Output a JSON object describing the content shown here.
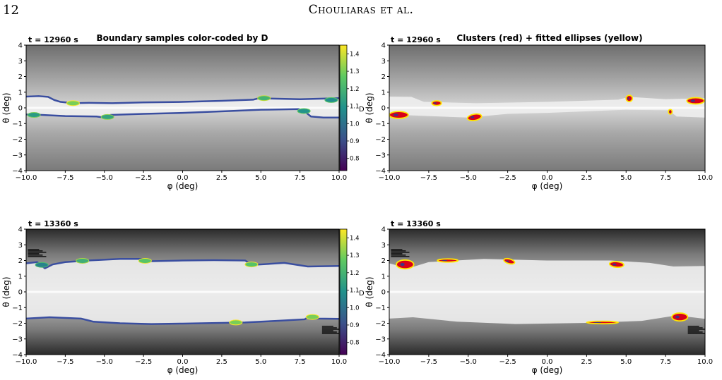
{
  "header": {
    "page_number": "12",
    "running_title": "Chouliaras et al."
  },
  "chart_data": [
    {
      "type": "scatter",
      "panel": "top-left",
      "timestamp": "t = 12960 s",
      "title": "Boundary samples color-coded by D",
      "xlabel": "φ (deg)",
      "ylabel": "θ (deg)",
      "xlim": [
        -10,
        10
      ],
      "ylim": [
        -4,
        4
      ],
      "xticks": [
        "−10.0",
        "−7.5",
        "−5.0",
        "−2.5",
        "0.0",
        "2.5",
        "5.0",
        "7.5",
        "10.0"
      ],
      "yticks": [
        "−4",
        "−3",
        "−2",
        "−1",
        "0",
        "1",
        "2",
        "3",
        "4"
      ],
      "colorbar": {
        "label": "D",
        "range": [
          0.73,
          1.45
        ],
        "ticks": [
          "0.8",
          "0.9",
          "1.0",
          "1.1",
          "1.2",
          "1.3",
          "1.4"
        ]
      },
      "boundaries": [
        {
          "points": [
            [
              -10,
              0.72
            ],
            [
              -9.2,
              0.75
            ],
            [
              -8.6,
              0.7
            ],
            [
              -8.2,
              0.5
            ],
            [
              -7.8,
              0.38
            ],
            [
              -7.0,
              0.3
            ],
            [
              -6.0,
              0.32
            ],
            [
              -4.5,
              0.3
            ],
            [
              -2.5,
              0.35
            ],
            [
              0,
              0.38
            ],
            [
              2.5,
              0.45
            ],
            [
              4.5,
              0.52
            ],
            [
              5.2,
              0.7
            ],
            [
              5.4,
              0.6
            ],
            [
              7.5,
              0.55
            ],
            [
              10,
              0.62
            ]
          ]
        },
        {
          "points": [
            [
              -10,
              -0.42
            ],
            [
              -9.0,
              -0.45
            ],
            [
              -7.5,
              -0.52
            ],
            [
              -5.5,
              -0.55
            ],
            [
              -5.0,
              -0.62
            ],
            [
              -4.6,
              -0.45
            ],
            [
              -2.5,
              -0.38
            ],
            [
              0,
              -0.32
            ],
            [
              3,
              -0.2
            ],
            [
              5,
              -0.12
            ],
            [
              7.4,
              -0.08
            ],
            [
              7.7,
              -0.15
            ],
            [
              8.2,
              -0.55
            ],
            [
              9,
              -0.62
            ],
            [
              10,
              -0.62
            ]
          ]
        }
      ],
      "highlights": [
        {
          "x": -9.5,
          "y": -0.45,
          "d": 1.12
        },
        {
          "x": -7.0,
          "y": 0.3,
          "d": 1.3
        },
        {
          "x": -4.8,
          "y": -0.58,
          "d": 1.15
        },
        {
          "x": 5.2,
          "y": 0.62,
          "d": 1.2
        },
        {
          "x": 7.75,
          "y": -0.2,
          "d": 1.1
        },
        {
          "x": 9.5,
          "y": 0.5,
          "d": 1.08
        }
      ]
    },
    {
      "type": "scatter",
      "panel": "top-right",
      "timestamp": "t = 12960 s",
      "title": "Clusters (red) + fitted ellipses (yellow)",
      "xlabel": "φ (deg)",
      "ylabel": "θ (deg)",
      "xlim": [
        -10,
        10
      ],
      "ylim": [
        -4,
        4
      ],
      "xticks": [
        "−10.0",
        "−7.5",
        "−5.0",
        "−2.5",
        "0.0",
        "2.5",
        "5.0",
        "7.5",
        "10.0"
      ],
      "yticks": [
        "−4",
        "−3",
        "−2",
        "−1",
        "0",
        "1",
        "2",
        "3",
        "4"
      ],
      "band": {
        "upper": [
          [
            -10,
            0.72
          ],
          [
            -8.6,
            0.7
          ],
          [
            -7.8,
            0.38
          ],
          [
            -4.5,
            0.3
          ],
          [
            0,
            0.38
          ],
          [
            4.5,
            0.52
          ],
          [
            5.2,
            0.7
          ],
          [
            7.5,
            0.55
          ],
          [
            10,
            0.62
          ]
        ],
        "lower": [
          [
            -10,
            -0.42
          ],
          [
            -7.5,
            -0.52
          ],
          [
            -5.0,
            -0.62
          ],
          [
            -2.5,
            -0.38
          ],
          [
            0,
            -0.32
          ],
          [
            5,
            -0.12
          ],
          [
            7.7,
            -0.15
          ],
          [
            8.2,
            -0.55
          ],
          [
            10,
            -0.62
          ]
        ]
      },
      "ellipses": [
        {
          "x": -9.4,
          "y": -0.45,
          "rx": 0.6,
          "ry": 0.22,
          "rot": 0
        },
        {
          "x": -7.0,
          "y": 0.3,
          "rx": 0.3,
          "ry": 0.15,
          "rot": 0
        },
        {
          "x": -4.6,
          "y": -0.6,
          "rx": 0.45,
          "ry": 0.2,
          "rot": -10
        },
        {
          "x": 5.2,
          "y": 0.6,
          "rx": 0.2,
          "ry": 0.2,
          "rot": 0
        },
        {
          "x": 7.8,
          "y": -0.25,
          "rx": 0.12,
          "ry": 0.15,
          "rot": 0
        },
        {
          "x": 9.4,
          "y": 0.45,
          "rx": 0.55,
          "ry": 0.2,
          "rot": 0
        }
      ]
    },
    {
      "type": "scatter",
      "panel": "bottom-left",
      "timestamp": "t = 13360 s",
      "title": "",
      "xlabel": "φ (deg)",
      "ylabel": "θ (deg)",
      "xlim": [
        -10,
        10
      ],
      "ylim": [
        -4,
        4
      ],
      "xticks": [
        "−10.0",
        "−7.5",
        "−5.0",
        "−2.5",
        "0.0",
        "2.5",
        "5.0",
        "7.5",
        "10.0"
      ],
      "yticks": [
        "−4",
        "−3",
        "−2",
        "−1",
        "0",
        "1",
        "2",
        "3",
        "4"
      ],
      "colorbar": {
        "label": "D",
        "range": [
          0.73,
          1.45
        ],
        "ticks": [
          "0.8",
          "0.9",
          "1.0",
          "1.1",
          "1.2",
          "1.3",
          "1.4"
        ]
      },
      "boundaries": [
        {
          "points": [
            [
              -10,
              1.82
            ],
            [
              -9.3,
              1.9
            ],
            [
              -8.8,
              1.5
            ],
            [
              -8.3,
              1.75
            ],
            [
              -7.5,
              1.9
            ],
            [
              -6.0,
              2.0
            ],
            [
              -4.0,
              2.1
            ],
            [
              -2.5,
              2.1
            ],
            [
              -2.2,
              1.95
            ],
            [
              0,
              2.0
            ],
            [
              2.0,
              2.02
            ],
            [
              4.0,
              2.0
            ],
            [
              4.4,
              1.72
            ],
            [
              5.0,
              1.75
            ],
            [
              6.5,
              1.85
            ],
            [
              8.0,
              1.62
            ],
            [
              10,
              1.65
            ]
          ]
        },
        {
          "points": [
            [
              -10,
              -1.7
            ],
            [
              -8.5,
              -1.62
            ],
            [
              -6.5,
              -1.7
            ],
            [
              -5.7,
              -1.9
            ],
            [
              -4.0,
              -2.0
            ],
            [
              -2.0,
              -2.05
            ],
            [
              0,
              -2.02
            ],
            [
              2.5,
              -1.98
            ],
            [
              4.0,
              -1.95
            ],
            [
              6.0,
              -1.85
            ],
            [
              7.8,
              -1.75
            ],
            [
              8.2,
              -1.5
            ],
            [
              8.6,
              -1.7
            ],
            [
              10,
              -1.72
            ]
          ]
        }
      ],
      "highlights": [
        {
          "x": -9.0,
          "y": 1.72,
          "d": 1.05
        },
        {
          "x": -6.4,
          "y": 1.98,
          "d": 1.18
        },
        {
          "x": -2.4,
          "y": 1.98,
          "d": 1.25
        },
        {
          "x": 4.4,
          "y": 1.75,
          "d": 1.25
        },
        {
          "x": 3.4,
          "y": -1.95,
          "d": 1.3
        },
        {
          "x": 8.3,
          "y": -1.6,
          "d": 1.3
        }
      ]
    },
    {
      "type": "scatter",
      "panel": "bottom-right",
      "timestamp": "t = 13360 s",
      "title": "",
      "xlabel": "φ (deg)",
      "ylabel": "θ (deg)",
      "xlim": [
        -10,
        10
      ],
      "ylim": [
        -4,
        4
      ],
      "xticks": [
        "−10.0",
        "−7.5",
        "−5.0",
        "−2.5",
        "0.0",
        "2.5",
        "5.0",
        "7.5",
        "10.0"
      ],
      "yticks": [
        "−4",
        "−3",
        "−2",
        "−1",
        "0",
        "1",
        "2",
        "3",
        "4"
      ],
      "band": {
        "upper": [
          [
            -10,
            1.82
          ],
          [
            -8.8,
            1.5
          ],
          [
            -7.5,
            1.9
          ],
          [
            -4.0,
            2.1
          ],
          [
            0,
            2.0
          ],
          [
            4.0,
            2.0
          ],
          [
            6.5,
            1.85
          ],
          [
            8.0,
            1.62
          ],
          [
            10,
            1.65
          ]
        ],
        "lower": [
          [
            -10,
            -1.7
          ],
          [
            -8.5,
            -1.62
          ],
          [
            -5.7,
            -1.9
          ],
          [
            -2.0,
            -2.05
          ],
          [
            2.5,
            -1.98
          ],
          [
            6.0,
            -1.85
          ],
          [
            8.2,
            -1.5
          ],
          [
            10,
            -1.72
          ]
        ]
      },
      "ellipses": [
        {
          "x": -9.0,
          "y": 1.75,
          "rx": 0.55,
          "ry": 0.28,
          "rot": 0
        },
        {
          "x": -6.3,
          "y": 2.0,
          "rx": 0.65,
          "ry": 0.1,
          "rot": 0
        },
        {
          "x": -2.4,
          "y": 1.95,
          "rx": 0.35,
          "ry": 0.15,
          "rot": 15
        },
        {
          "x": 4.4,
          "y": 1.75,
          "rx": 0.45,
          "ry": 0.18,
          "rot": 5
        },
        {
          "x": 3.5,
          "y": -1.95,
          "rx": 1.0,
          "ry": 0.08,
          "rot": 0
        },
        {
          "x": 8.4,
          "y": -1.6,
          "rx": 0.5,
          "ry": 0.25,
          "rot": 0
        }
      ]
    }
  ]
}
